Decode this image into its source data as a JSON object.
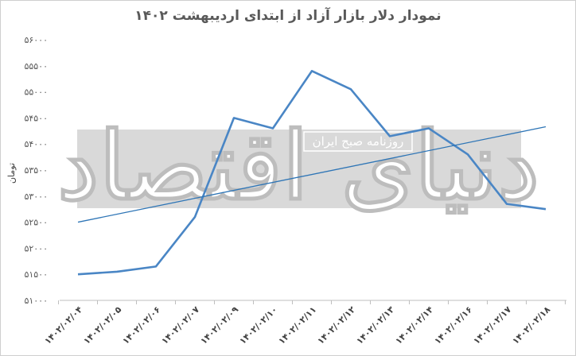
{
  "chart_data": {
    "type": "line",
    "title": "نمودار دلار بازار آزاد از ابتدای اردیبهشت ۱۴۰۲",
    "ylabel": "تومان",
    "xlabel": "",
    "ylim": [
      51000,
      56000
    ],
    "y_ticks": [
      "۵۱۰۰۰",
      "۵۱۵۰۰",
      "۵۲۰۰۰",
      "۵۲۵۰۰",
      "۵۳۰۰۰",
      "۵۳۵۰۰",
      "۵۴۰۰۰",
      "۵۴۵۰۰",
      "۵۵۰۰۰",
      "۵۵۵۰۰",
      "۵۶۰۰۰"
    ],
    "y_tick_values": [
      51000,
      51500,
      52000,
      52500,
      53000,
      53500,
      54000,
      54500,
      55000,
      55500,
      56000
    ],
    "categories": [
      "۱۴۰۲/۰۲/۰۴",
      "۱۴۰۲/۰۲/۰۵",
      "۱۴۰۲/۰۲/۰۶",
      "۱۴۰۲/۰۲/۰۷",
      "۱۴۰۲/۰۲/۰۹",
      "۱۴۰۲/۰۲/۱۰",
      "۱۴۰۲/۰۲/۱۱",
      "۱۴۰۲/۰۲/۱۲",
      "۱۴۰۲/۰۲/۱۳",
      "۱۴۰۲/۰۲/۱۴",
      "۱۴۰۲/۰۲/۱۶",
      "۱۴۰۲/۰۲/۱۷",
      "۱۴۰۲/۰۲/۱۸"
    ],
    "series": [
      {
        "values": [
          51500,
          51550,
          51650,
          52600,
          54500,
          54300,
          55400,
          55050,
          54150,
          54300,
          53800,
          52850,
          52750
        ],
        "color": "#4a86c5"
      }
    ],
    "trendline": {
      "type": "linear",
      "color": "#2e75b6"
    },
    "grid": false,
    "legend": "none"
  },
  "watermark": {
    "big_text": "دنیای اقتصاد",
    "small_text": "روزنامه صبح ایران",
    "band_color": "#d9d9d9"
  }
}
